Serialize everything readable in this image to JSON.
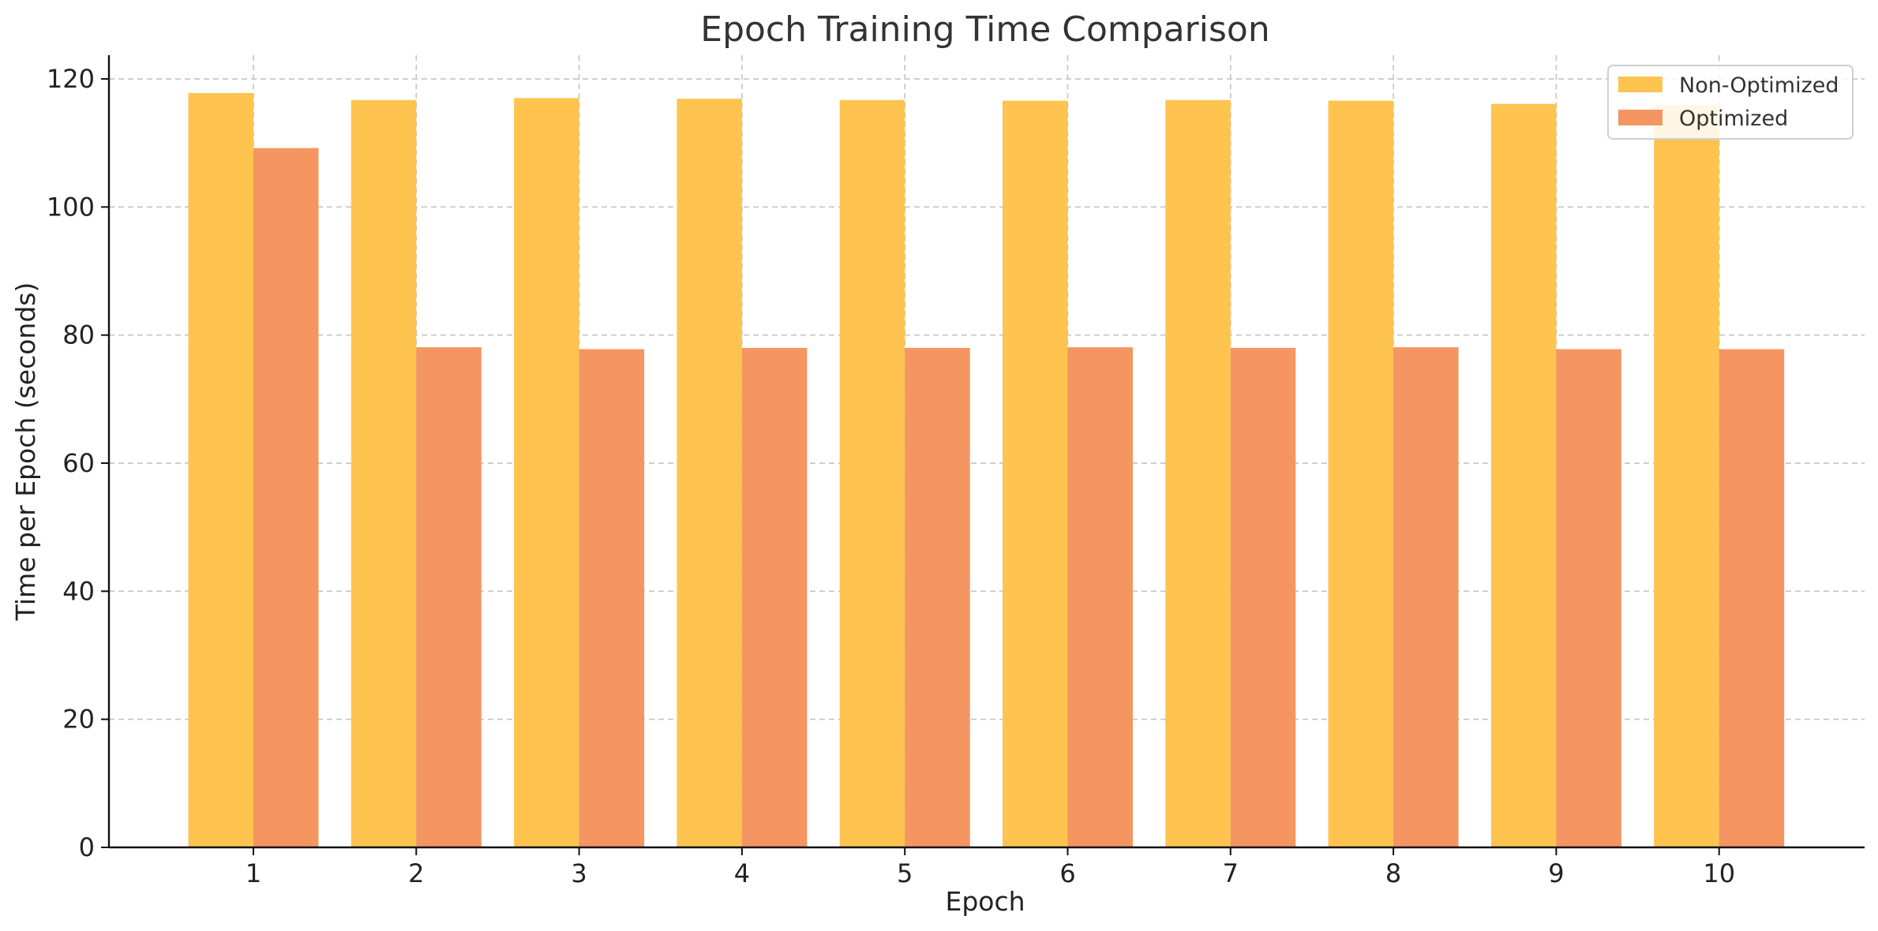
{
  "chart_data": {
    "type": "bar",
    "title": "Epoch Training Time Comparison",
    "xlabel": "Epoch",
    "ylabel": "Time per Epoch (seconds)",
    "categories": [
      "1",
      "2",
      "3",
      "4",
      "5",
      "6",
      "7",
      "8",
      "9",
      "10"
    ],
    "series": [
      {
        "name": "Non-Optimized",
        "color": "#fec44f",
        "values": [
          117.8,
          116.7,
          117.0,
          116.9,
          116.7,
          116.6,
          116.7,
          116.6,
          116.1,
          115.9
        ]
      },
      {
        "name": "Optimized",
        "color": "#f59562",
        "values": [
          109.2,
          78.1,
          77.8,
          78.0,
          78.0,
          78.1,
          78.0,
          78.1,
          77.8,
          77.8
        ]
      }
    ],
    "ylim": [
      0,
      123.7
    ],
    "yticks": [
      0,
      20,
      40,
      60,
      80,
      100,
      120
    ],
    "grid": true,
    "legend": "top-right"
  }
}
